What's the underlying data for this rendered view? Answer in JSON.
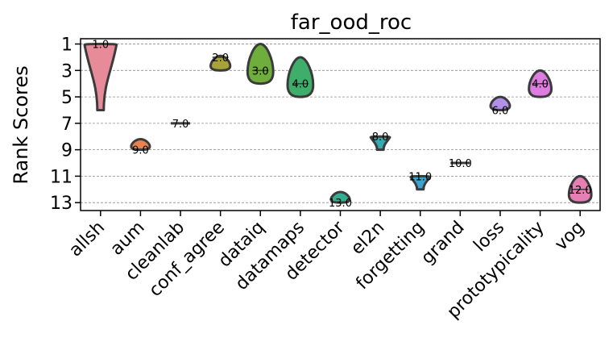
{
  "chart_data": {
    "type": "violin",
    "title": "far_ood_roc",
    "ylabel": "Rank Scores",
    "xlabel": "",
    "ylim": [
      13.6,
      0.6
    ],
    "yticks": [
      1,
      3,
      5,
      7,
      9,
      11,
      13
    ],
    "grid": "horizontal dashed",
    "categories": [
      "allsh",
      "aum",
      "cleanlab",
      "conf_agree",
      "dataiq",
      "datamaps",
      "detector",
      "el2n",
      "forgetting",
      "grand",
      "loss",
      "prototypicality",
      "vog"
    ],
    "series": [
      {
        "category": "allsh",
        "median": 1.0,
        "min": 1,
        "max": 6,
        "color": "#e88b98",
        "label": "1.0"
      },
      {
        "category": "aum",
        "median": 9.0,
        "min": 8.2,
        "max": 9.0,
        "color": "#e8834f",
        "label": "9.0"
      },
      {
        "category": "cleanlab",
        "median": 7.0,
        "min": 7,
        "max": 7,
        "color": "#c8a82f",
        "label": "7.0"
      },
      {
        "category": "conf_agree",
        "median": 2.0,
        "min": 1.9,
        "max": 3.0,
        "color": "#a7a338",
        "label": "2.0"
      },
      {
        "category": "dataiq",
        "median": 3.0,
        "min": 1,
        "max": 4,
        "color": "#6fae3c",
        "label": "3.0"
      },
      {
        "category": "datamaps",
        "median": 4.0,
        "min": 2,
        "max": 5,
        "color": "#3fae6a",
        "label": "4.0"
      },
      {
        "category": "detector",
        "median": 13.0,
        "min": 12.2,
        "max": 13.0,
        "color": "#35ad91",
        "label": "13.0"
      },
      {
        "category": "el2n",
        "median": 8.0,
        "min": 8.0,
        "max": 9.0,
        "color": "#37a9b0",
        "label": "8.0"
      },
      {
        "category": "forgetting",
        "median": 11.0,
        "min": 11,
        "max": 12,
        "color": "#3ba3cf",
        "label": "11.0"
      },
      {
        "category": "grand",
        "median": 10.0,
        "min": 10,
        "max": 10,
        "color": "#8e9ee8",
        "label": "10.0"
      },
      {
        "category": "loss",
        "median": 6.0,
        "min": 5.0,
        "max": 6.0,
        "color": "#b191e8",
        "label": "6.0"
      },
      {
        "category": "prototypicality",
        "median": 4.0,
        "min": 3,
        "max": 5,
        "color": "#df7ce0",
        "label": "4.0"
      },
      {
        "category": "vog",
        "median": 12.0,
        "min": 11,
        "max": 13,
        "color": "#e67fb4",
        "label": "12.0"
      }
    ]
  }
}
